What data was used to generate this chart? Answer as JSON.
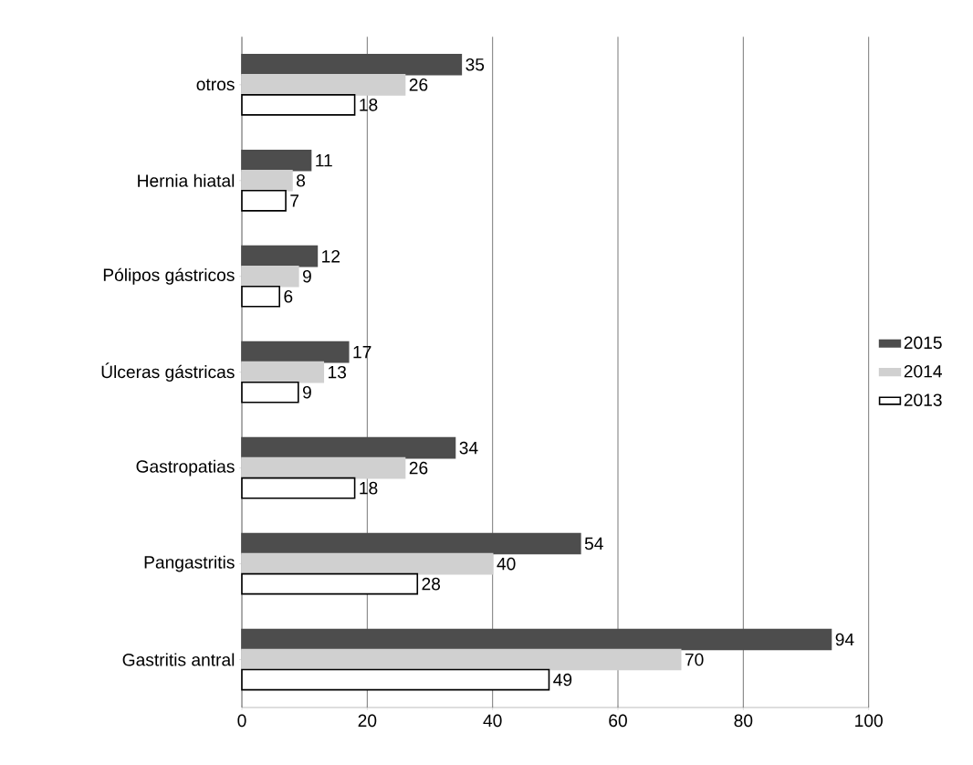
{
  "chart_data": {
    "type": "bar",
    "orientation": "horizontal",
    "categories": [
      "otros",
      "Hernia hiatal",
      "Pólipos gástricos",
      "Úlceras gástricas",
      "Gastropatias",
      "Pangastritis",
      "Gastritis antral"
    ],
    "series": [
      {
        "name": "2015",
        "color": "#4d4d4d",
        "values": [
          35,
          11,
          12,
          17,
          34,
          54,
          94
        ]
      },
      {
        "name": "2014",
        "color": "#d0d0d0",
        "values": [
          26,
          8,
          9,
          13,
          26,
          40,
          70
        ]
      },
      {
        "name": "2013",
        "color": "#ffffff",
        "values": [
          18,
          7,
          6,
          9,
          18,
          28,
          49
        ]
      }
    ],
    "xlim": [
      0,
      100
    ],
    "xticks": [
      0,
      20,
      40,
      60,
      80,
      100
    ],
    "grid": "x",
    "legend": "right",
    "data_labels": true
  }
}
